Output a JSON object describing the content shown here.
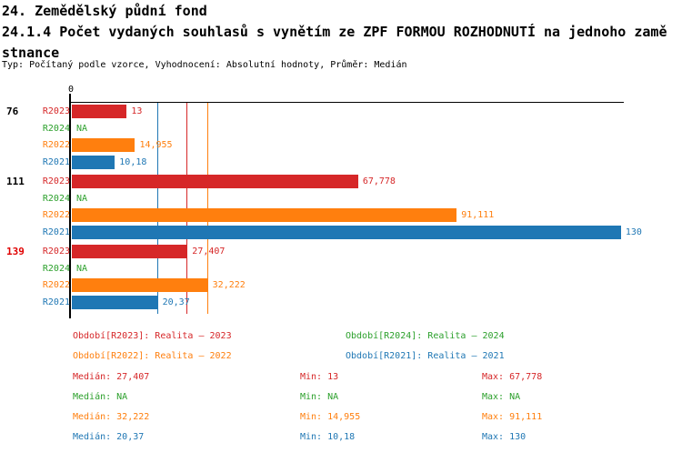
{
  "title": "24. Zemědělský půdní fond",
  "subtitle_line1": "24.1.4 Počet vydaných souhlasů s vynětím ze ZPF FORMOU ROZHODNUTÍ na jednoho zamě",
  "subtitle_line2": "stnance",
  "meta": "Typ: Počítaný podle vzorce, Vyhodnocení: Absolutní hodnoty, Průměr: Medián",
  "colors": {
    "red": "#d62728",
    "green": "#2ca02c",
    "orange": "#ff7f0e",
    "blue": "#1f77b4",
    "highlight_red": "#e00000",
    "axis_black": "#000000"
  },
  "chart_data": {
    "type": "bar",
    "orientation": "horizontal",
    "x_axis": {
      "zero_label": "0",
      "min": 0,
      "max_value_shown": 130,
      "grid": false
    },
    "series": [
      {
        "id": "R2023",
        "name": "Realita – 2023",
        "color": "#d62728"
      },
      {
        "id": "R2024",
        "name": "Realita – 2024",
        "color": "#2ca02c"
      },
      {
        "id": "R2022",
        "name": "Realita – 2022",
        "color": "#ff7f0e"
      },
      {
        "id": "R2021",
        "name": "Realita – 2021",
        "color": "#1f77b4"
      }
    ],
    "groups": [
      {
        "label": "76",
        "label_color": "#000000",
        "values": [
          {
            "series": "R2023",
            "value": 13,
            "display": "13"
          },
          {
            "series": "R2024",
            "value": null,
            "display": "NA"
          },
          {
            "series": "R2022",
            "value": 14.955,
            "display": "14,955"
          },
          {
            "series": "R2021",
            "value": 10.18,
            "display": "10,18"
          }
        ]
      },
      {
        "label": "111",
        "label_color": "#000000",
        "values": [
          {
            "series": "R2023",
            "value": 67.778,
            "display": "67,778"
          },
          {
            "series": "R2024",
            "value": null,
            "display": "NA"
          },
          {
            "series": "R2022",
            "value": 91.111,
            "display": "91,111"
          },
          {
            "series": "R2021",
            "value": 130,
            "display": "130"
          }
        ]
      },
      {
        "label": "139",
        "label_color": "#e00000",
        "values": [
          {
            "series": "R2023",
            "value": 27.407,
            "display": "27,407"
          },
          {
            "series": "R2024",
            "value": null,
            "display": "NA"
          },
          {
            "series": "R2022",
            "value": 32.222,
            "display": "32,222"
          },
          {
            "series": "R2021",
            "value": 20.37,
            "display": "20,37"
          }
        ]
      }
    ],
    "median_lines": [
      {
        "series": "R2023",
        "value": 27.407,
        "color": "#d62728"
      },
      {
        "series": "R2022",
        "value": 32.222,
        "color": "#ff7f0e"
      },
      {
        "series": "R2021",
        "value": 20.37,
        "color": "#1f77b4"
      }
    ]
  },
  "legend": [
    {
      "label": "Období[R2023]: Realita – 2023",
      "color": "#d62728"
    },
    {
      "label": "Období[R2024]: Realita – 2024",
      "color": "#2ca02c"
    },
    {
      "label": "Období[R2022]: Realita – 2022",
      "color": "#ff7f0e"
    },
    {
      "label": "Období[R2021]: Realita – 2021",
      "color": "#1f77b4"
    }
  ],
  "stats": {
    "labels": {
      "median": "Medián:",
      "min": "Min:",
      "max": "Max:"
    },
    "rows": [
      {
        "color": "#d62728",
        "median": "27,407",
        "min": "13",
        "max": "67,778"
      },
      {
        "color": "#2ca02c",
        "median": "NA",
        "min": "NA",
        "max": "NA"
      },
      {
        "color": "#ff7f0e",
        "median": "32,222",
        "min": "14,955",
        "max": "91,111"
      },
      {
        "color": "#1f77b4",
        "median": "20,37",
        "min": "10,18",
        "max": "130"
      }
    ]
  }
}
